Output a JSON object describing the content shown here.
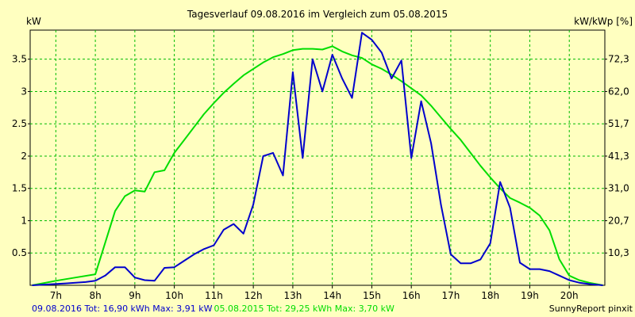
{
  "chart_data": {
    "type": "line",
    "title": "Tagesverlauf 09.08.2016 im Vergleich zum 05.08.2015",
    "ylabel_left": "kW",
    "ylabel_right": "kW/kWp [%]",
    "xlim": [
      6.35,
      20.9
    ],
    "ylim": [
      0,
      3.95
    ],
    "x_ticks": [
      {
        "x": 7,
        "label": "7h"
      },
      {
        "x": 8,
        "label": "8h"
      },
      {
        "x": 9,
        "label": "9h"
      },
      {
        "x": 10,
        "label": "10h"
      },
      {
        "x": 11,
        "label": "11h"
      },
      {
        "x": 12,
        "label": "12h"
      },
      {
        "x": 13,
        "label": "13h"
      },
      {
        "x": 14,
        "label": "14h"
      },
      {
        "x": 15,
        "label": "15h"
      },
      {
        "x": 16,
        "label": "16h"
      },
      {
        "x": 17,
        "label": "17h"
      },
      {
        "x": 18,
        "label": "18h"
      },
      {
        "x": 19,
        "label": "19h"
      },
      {
        "x": 20,
        "label": "20h"
      }
    ],
    "y_ticks_left": [
      {
        "y": 0.5,
        "label": "0.5"
      },
      {
        "y": 1,
        "label": "1"
      },
      {
        "y": 1.5,
        "label": "1.5"
      },
      {
        "y": 2,
        "label": "2"
      },
      {
        "y": 2.5,
        "label": "2.5"
      },
      {
        "y": 3,
        "label": "3"
      },
      {
        "y": 3.5,
        "label": "3.5"
      }
    ],
    "y_ticks_right": [
      {
        "y": 0.5,
        "label": "10,3"
      },
      {
        "y": 1,
        "label": "20,7"
      },
      {
        "y": 1.5,
        "label": "31,0"
      },
      {
        "y": 2,
        "label": "41,3"
      },
      {
        "y": 2.5,
        "label": "51,7"
      },
      {
        "y": 3,
        "label": "62,0"
      },
      {
        "y": 3.5,
        "label": "72,3"
      }
    ],
    "grid": true,
    "legend_position": "bottom",
    "series": [
      {
        "name": "09.08.2016 Tot: 16,90 kWh Max: 3,91 kW",
        "color": "#0000cc",
        "x": [
          6.4,
          7.25,
          7.75,
          8.0,
          8.25,
          8.5,
          8.75,
          9.0,
          9.25,
          9.5,
          9.75,
          10.0,
          10.25,
          10.5,
          10.75,
          11.0,
          11.25,
          11.5,
          11.75,
          12.0,
          12.25,
          12.5,
          12.75,
          13.0,
          13.25,
          13.5,
          13.75,
          14.0,
          14.25,
          14.5,
          14.75,
          15.0,
          15.25,
          15.5,
          15.75,
          16.0,
          16.25,
          16.5,
          16.75,
          17.0,
          17.25,
          17.5,
          17.75,
          18.0,
          18.25,
          18.5,
          18.75,
          19.0,
          19.25,
          19.5,
          19.75,
          20.0,
          20.25,
          20.5,
          20.85
        ],
        "values": [
          0.0,
          0.03,
          0.05,
          0.07,
          0.15,
          0.28,
          0.28,
          0.12,
          0.08,
          0.07,
          0.27,
          0.28,
          0.38,
          0.48,
          0.56,
          0.62,
          0.86,
          0.95,
          0.8,
          1.25,
          2.0,
          2.05,
          1.7,
          3.3,
          1.97,
          3.5,
          3.0,
          3.57,
          3.2,
          2.9,
          3.91,
          3.8,
          3.6,
          3.2,
          3.48,
          1.97,
          2.85,
          2.2,
          1.25,
          0.48,
          0.34,
          0.34,
          0.4,
          0.65,
          1.6,
          1.2,
          0.35,
          0.25,
          0.25,
          0.22,
          0.15,
          0.08,
          0.04,
          0.02,
          0.0
        ]
      },
      {
        "name": "05.08.2015 Tot: 29,25 kWh Max: 3,70 kW",
        "color": "#00dd00",
        "x": [
          6.4,
          7.0,
          7.5,
          8.0,
          8.5,
          8.75,
          9.0,
          9.25,
          9.5,
          9.75,
          10.0,
          10.25,
          10.5,
          10.75,
          11.0,
          11.25,
          11.5,
          11.75,
          12.0,
          12.25,
          12.5,
          12.75,
          13.0,
          13.25,
          13.5,
          13.75,
          14.0,
          14.25,
          14.5,
          14.75,
          15.0,
          15.25,
          15.5,
          15.75,
          16.0,
          16.25,
          16.5,
          16.75,
          17.0,
          17.25,
          17.5,
          17.75,
          18.0,
          18.25,
          18.5,
          18.75,
          19.0,
          19.25,
          19.5,
          19.75,
          20.0,
          20.25,
          20.5,
          20.85
        ],
        "values": [
          0.0,
          0.07,
          0.12,
          0.17,
          1.15,
          1.38,
          1.47,
          1.45,
          1.75,
          1.78,
          2.05,
          2.25,
          2.45,
          2.65,
          2.82,
          2.98,
          3.12,
          3.25,
          3.35,
          3.45,
          3.53,
          3.58,
          3.64,
          3.66,
          3.66,
          3.65,
          3.7,
          3.62,
          3.56,
          3.52,
          3.42,
          3.35,
          3.26,
          3.16,
          3.05,
          2.94,
          2.78,
          2.6,
          2.42,
          2.25,
          2.05,
          1.85,
          1.67,
          1.5,
          1.35,
          1.28,
          1.2,
          1.08,
          0.85,
          0.4,
          0.15,
          0.08,
          0.04,
          0.0
        ]
      }
    ]
  },
  "footer": {
    "credit": "SunnyReport pinxit"
  }
}
